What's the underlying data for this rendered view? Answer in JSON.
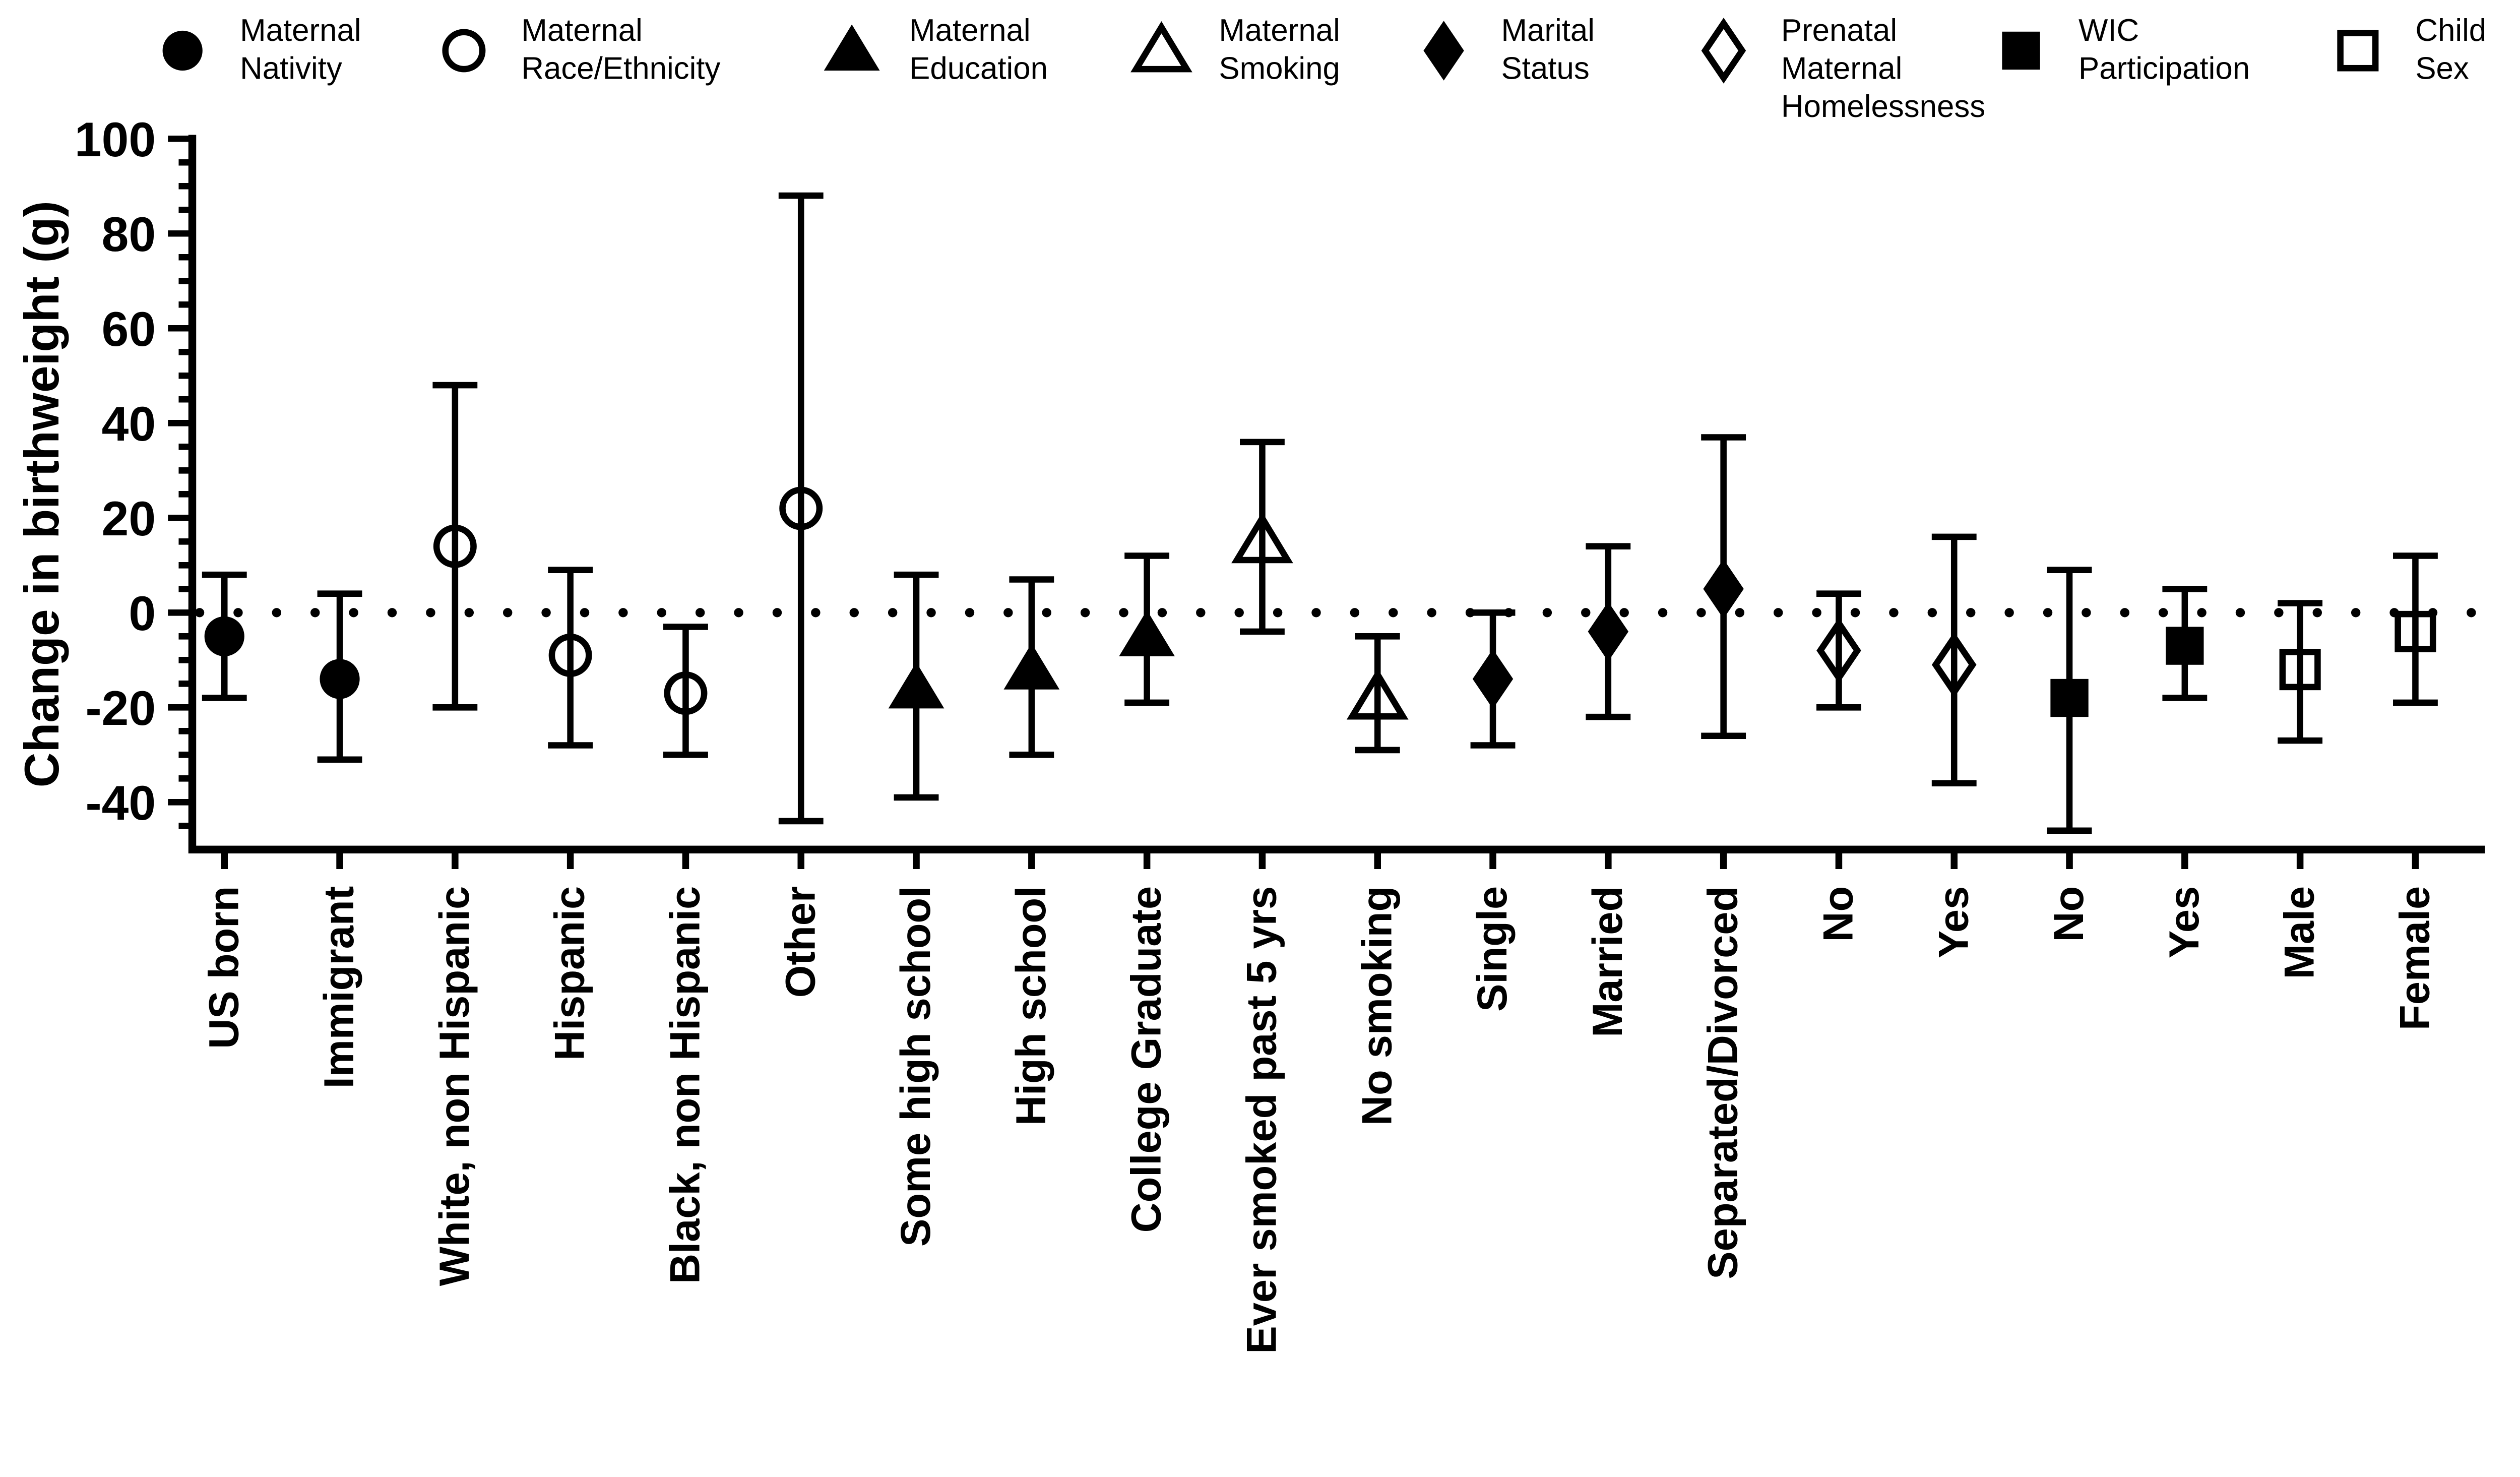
{
  "figure": {
    "background": "#ffffff",
    "ink_color": "#000000",
    "ylabel": "Change in birthweight (g)",
    "y_axis": {
      "min": -50,
      "max": 100,
      "major_ticks": [
        100,
        80,
        60,
        40,
        20,
        0,
        -20,
        -40
      ],
      "minor_step": 5,
      "zero_reference_line": "dotted"
    },
    "legend": [
      {
        "label": "Maternal Nativity",
        "marker": "filled-circle-icon"
      },
      {
        "label": "Maternal Race/Ethnicity",
        "marker": "open-circle-icon"
      },
      {
        "label": "Maternal Education",
        "marker": "filled-triangle-icon"
      },
      {
        "label": "Maternal Smoking",
        "marker": "open-triangle-icon"
      },
      {
        "label": "Marital Status",
        "marker": "filled-diamond-icon"
      },
      {
        "label": "Prenatal Maternal Homelessness",
        "marker": "open-diamond-icon"
      },
      {
        "label": "WIC Participation",
        "marker": "filled-square-icon"
      },
      {
        "label": "Child Sex",
        "marker": "open-square-icon"
      }
    ]
  },
  "chart_data": {
    "type": "scatter",
    "subtype": "forest-plot-with-error-bars",
    "title": "",
    "xlabel": "",
    "ylabel": "Change in birthweight (g)",
    "ylim": [
      -50,
      100
    ],
    "y_major_ticks": [
      100,
      80,
      60,
      40,
      20,
      0,
      -20,
      -40
    ],
    "y_minor_tick_step": 5,
    "grid": false,
    "legend_position": "top",
    "categories": [
      "US born",
      "Immigrant",
      "White, non Hispanic",
      "Hispanic",
      "Black, non Hispanic",
      "Other",
      "Some high school",
      "High school",
      "College Graduate",
      "Ever smoked past 5 yrs",
      "No smoking",
      "Single",
      "Married",
      "Separated/Divorced",
      "No",
      "Yes",
      "No",
      "Yes",
      "Male",
      "Female"
    ],
    "series": [
      {
        "name": "Maternal Nativity",
        "marker": "circle",
        "fill": "filled",
        "points": [
          {
            "category": "US born",
            "y": -5,
            "ci_low": -18,
            "ci_high": 8
          },
          {
            "category": "Immigrant",
            "y": -14,
            "ci_low": -31,
            "ci_high": 4
          }
        ]
      },
      {
        "name": "Maternal Race/Ethnicity",
        "marker": "circle",
        "fill": "open",
        "points": [
          {
            "category": "White, non Hispanic",
            "y": 14,
            "ci_low": -20,
            "ci_high": 48
          },
          {
            "category": "Hispanic",
            "y": -9,
            "ci_low": -28,
            "ci_high": 9
          },
          {
            "category": "Black, non Hispanic",
            "y": -17,
            "ci_low": -30,
            "ci_high": -3
          },
          {
            "category": "Other",
            "y": 22,
            "ci_low": -44,
            "ci_high": 88
          }
        ]
      },
      {
        "name": "Maternal Education",
        "marker": "triangle",
        "fill": "filled",
        "points": [
          {
            "category": "Some high school",
            "y": -16,
            "ci_low": -39,
            "ci_high": 8
          },
          {
            "category": "High school",
            "y": -12,
            "ci_low": -30,
            "ci_high": 7
          },
          {
            "category": "College Graduate",
            "y": -5,
            "ci_low": -19,
            "ci_high": 12
          }
        ]
      },
      {
        "name": "Maternal Smoking",
        "marker": "triangle",
        "fill": "open",
        "points": [
          {
            "category": "Ever smoked past 5 yrs",
            "y": 15,
            "ci_low": -4,
            "ci_high": 36
          },
          {
            "category": "No smoking",
            "y": -18,
            "ci_low": -29,
            "ci_high": -5
          }
        ]
      },
      {
        "name": "Marital Status",
        "marker": "diamond",
        "fill": "filled",
        "points": [
          {
            "category": "Single",
            "y": -14,
            "ci_low": -28,
            "ci_high": 0
          },
          {
            "category": "Married",
            "y": -4,
            "ci_low": -22,
            "ci_high": 14
          },
          {
            "category": "Separated/Divorced",
            "y": 5,
            "ci_low": -26,
            "ci_high": 37
          }
        ]
      },
      {
        "name": "Prenatal Maternal Homelessness",
        "marker": "diamond",
        "fill": "open",
        "points": [
          {
            "category": "No",
            "y": -8,
            "ci_low": -20,
            "ci_high": 4
          },
          {
            "category": "Yes",
            "y": -11,
            "ci_low": -36,
            "ci_high": 16
          }
        ]
      },
      {
        "name": "WIC Participation",
        "marker": "square",
        "fill": "filled",
        "points": [
          {
            "category": "No",
            "y": -18,
            "ci_low": -46,
            "ci_high": 9
          },
          {
            "category": "Yes",
            "y": -7,
            "ci_low": -18,
            "ci_high": 5
          }
        ]
      },
      {
        "name": "Child Sex",
        "marker": "square",
        "fill": "open",
        "points": [
          {
            "category": "Male",
            "y": -12,
            "ci_low": -27,
            "ci_high": 2
          },
          {
            "category": "Female",
            "y": -4,
            "ci_low": -19,
            "ci_high": 12
          }
        ]
      }
    ]
  }
}
